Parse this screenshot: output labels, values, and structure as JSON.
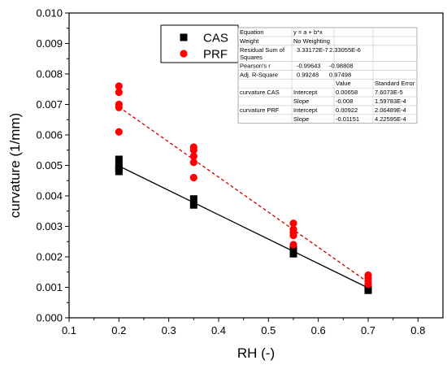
{
  "chart_data": {
    "type": "scatter",
    "xlabel": "RH (-)",
    "ylabel": "curvature (1/mm)",
    "xlim": [
      0.1,
      0.85
    ],
    "ylim": [
      0,
      0.01
    ],
    "xticks": [
      "0.1",
      "0.2",
      "0.3",
      "0.4",
      "0.5",
      "0.6",
      "0.7",
      "0.8"
    ],
    "yticks": [
      "0.000",
      "0.001",
      "0.002",
      "0.003",
      "0.004",
      "0.005",
      "0.006",
      "0.007",
      "0.008",
      "0.009",
      "0.010"
    ],
    "grid": false,
    "legend_position": "top-center",
    "series": [
      {
        "name": "CAS",
        "marker": "square",
        "color": "#000000",
        "points": [
          {
            "x": 0.2,
            "y": 0.0052
          },
          {
            "x": 0.2,
            "y": 0.005
          },
          {
            "x": 0.2,
            "y": 0.0049
          },
          {
            "x": 0.2,
            "y": 0.0048
          },
          {
            "x": 0.35,
            "y": 0.0039
          },
          {
            "x": 0.35,
            "y": 0.0037
          },
          {
            "x": 0.55,
            "y": 0.00225
          },
          {
            "x": 0.55,
            "y": 0.0021
          },
          {
            "x": 0.7,
            "y": 0.00095
          },
          {
            "x": 0.7,
            "y": 0.0009
          }
        ],
        "fit": {
          "intercept": 0.00658,
          "slope": -0.008,
          "x_range": [
            0.2,
            0.7
          ],
          "line_style": "solid",
          "color": "#000000"
        }
      },
      {
        "name": "PRF",
        "marker": "circle",
        "color": "#ff0000",
        "points": [
          {
            "x": 0.2,
            "y": 0.0076
          },
          {
            "x": 0.2,
            "y": 0.0074
          },
          {
            "x": 0.2,
            "y": 0.007
          },
          {
            "x": 0.2,
            "y": 0.0069
          },
          {
            "x": 0.2,
            "y": 0.0061
          },
          {
            "x": 0.35,
            "y": 0.0056
          },
          {
            "x": 0.35,
            "y": 0.0055
          },
          {
            "x": 0.35,
            "y": 0.0053
          },
          {
            "x": 0.35,
            "y": 0.0051
          },
          {
            "x": 0.35,
            "y": 0.0046
          },
          {
            "x": 0.55,
            "y": 0.0031
          },
          {
            "x": 0.55,
            "y": 0.0029
          },
          {
            "x": 0.55,
            "y": 0.0028
          },
          {
            "x": 0.55,
            "y": 0.0027
          },
          {
            "x": 0.55,
            "y": 0.0024
          },
          {
            "x": 0.7,
            "y": 0.0014
          },
          {
            "x": 0.7,
            "y": 0.0013
          },
          {
            "x": 0.7,
            "y": 0.0012
          },
          {
            "x": 0.7,
            "y": 0.0011
          }
        ],
        "fit": {
          "intercept": 0.00922,
          "slope": -0.01151,
          "x_range": [
            0.2,
            0.7
          ],
          "line_style": "dashed",
          "color": "#cc0000"
        }
      }
    ],
    "stats_table": {
      "rows": [
        [
          "Equation",
          "y = a + b*x",
          ""
        ],
        [
          "Weight",
          "No Weighting",
          ""
        ],
        [
          "Residual Sum of Squares",
          "3.33172E-7",
          "2.33055E-6"
        ],
        [
          "Pearson's r",
          "-0.99643",
          "-0.98808"
        ],
        [
          "Adj. R-Square",
          "0.99248",
          "0.97498"
        ],
        [
          "",
          "",
          "Value",
          "Standard Error"
        ],
        [
          "curvature CAS",
          "Intercept",
          "0.00658",
          "7.6073E-5"
        ],
        [
          "",
          "Slope",
          "-0.008",
          "1.59783E-4"
        ],
        [
          "curvature PRF",
          "Intercept",
          "0.00922",
          "2.06489E-4"
        ],
        [
          "",
          "Slope",
          "-0.01151",
          "4.22595E-4"
        ]
      ]
    }
  }
}
